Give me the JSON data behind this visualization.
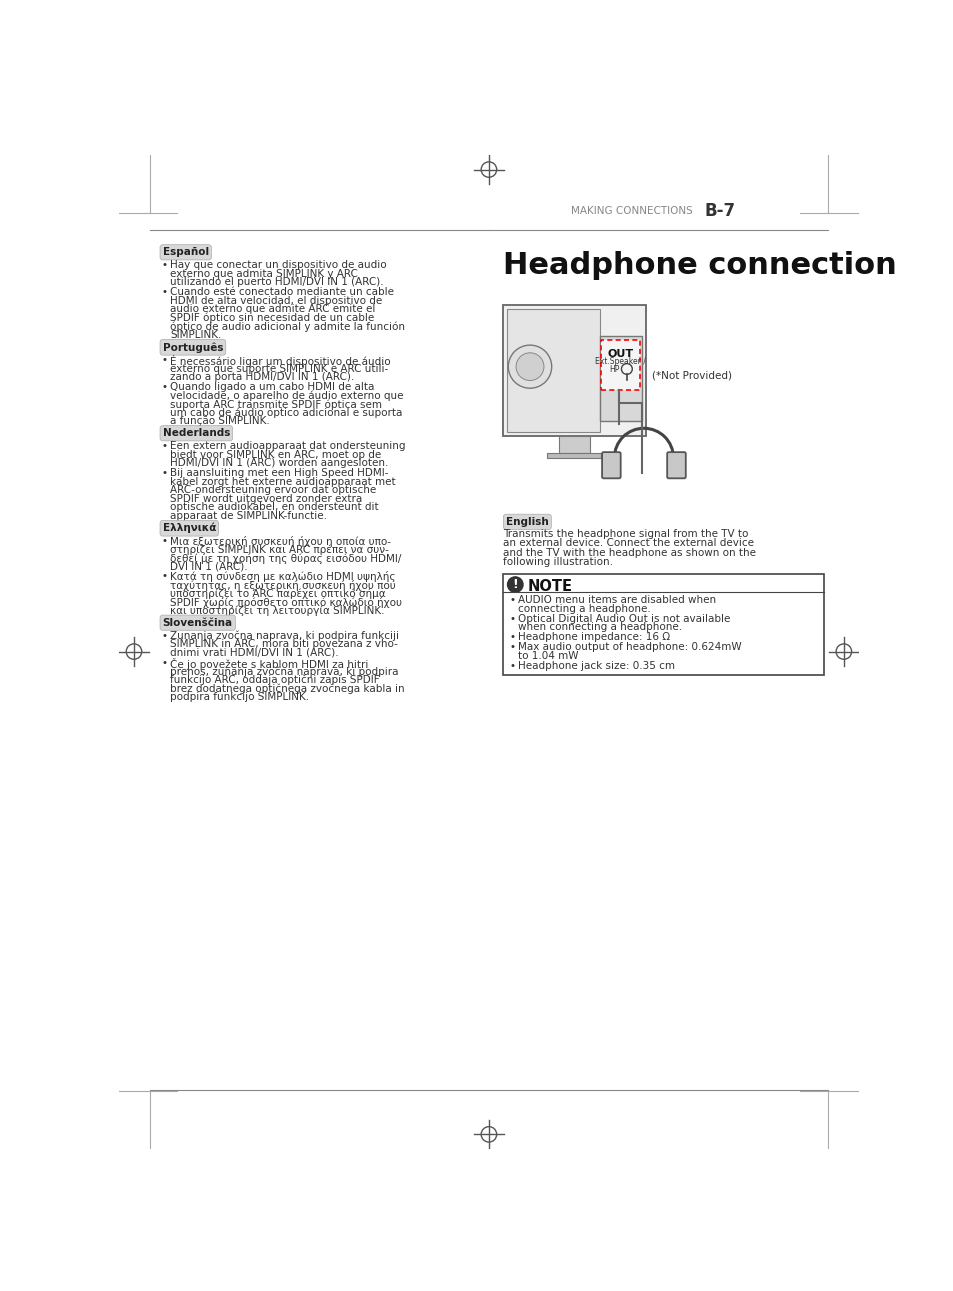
{
  "page_header_left": "MAKING CONNECTIONS",
  "page_header_right": "B-7",
  "title": "Headphone connection",
  "not_provided": "(*Not Provided)",
  "english_label": "English",
  "english_text_lines": [
    "Transmits the headphone signal from the TV to",
    "an external device. Connect the external device",
    "and the TV with the headphone as shown on the",
    "following illustration."
  ],
  "note_title": "NOTE",
  "note_bullet_groups": [
    [
      "AUDIO menu items are disabled when",
      "connecting a headphone."
    ],
    [
      "Optical Digital Audio Out is not available",
      "when connecting a headphone."
    ],
    [
      "Headphone impedance: 16 Ω"
    ],
    [
      "Max audio output of headphone: 0.624mW",
      "to 1.04 mW"
    ],
    [
      "Headphone jack size: 0.35 cm"
    ]
  ],
  "espanol_label": "Español",
  "espanol_bullet1": [
    "Hay que conectar un dispositivo de audio",
    "externo que admita SIMPLINK y ARC",
    "utilizando el puerto HDMI/DVI IN 1 (ARC)."
  ],
  "espanol_bullet2": [
    "Cuando esté conectado mediante un cable",
    "HDMI de alta velocidad, el dispositivo de",
    "audio externo que admite ARC emite el",
    "SPDIF óptico sin necesidad de un cable",
    "óptico de audio adicional y admite la función",
    "SIMPLINK."
  ],
  "portugues_label": "Português",
  "portugues_bullet1": [
    "É necessário ligar um dispositivo de áudio",
    "externo que suporte SIMPLINK e ARC utili-",
    "zando a porta HDMI/DVI IN 1 (ARC)."
  ],
  "portugues_bullet2": [
    "Quando ligado a um cabo HDMI de alta",
    "velocidade, o aparelho de áudio externo que",
    "suporta ARC transmite SPDIF óptica sem",
    "um cabo de áudio óptico adicional e suporta",
    "a função SIMPLINK."
  ],
  "nederlands_label": "Nederlands",
  "nederlands_bullet1": [
    "Een extern audioapparaat dat ondersteuning",
    "biedt voor SIMPLINK en ARC, moet op de",
    "HDMI/DVI IN 1 (ARC) worden aangesloten."
  ],
  "nederlands_bullet2": [
    "Bij aansluiting met een High Speed HDMI-",
    "kabel zorgt het externe audioapparaat met",
    "ARC-ondersteuning ervoor dat optische",
    "SPDIF wordt uitgevoerd zonder extra",
    "optische audiokabel, en ondersteunt dit",
    "apparaat de SIMPLINK-functie."
  ],
  "ellhnika_label": "Ελληνικά",
  "ellhnika_bullet1": [
    "Μια εξωτερική συσκευή ήχου η οποία υπο-",
    "στηρίζει SIMPLINK και ARC πρέπει να συν-",
    "δεθεί με τη χρήση της θύρας εισόδου HDMI/",
    "DVI IN 1 (ARC)."
  ],
  "ellhnika_bullet2": [
    "Κατά τη σύνδεση με καλώδιο HDMI υψηλής",
    "ταχύτητας, η εξωτερική συσκευή ήχου που",
    "υποστηρίζει το ARC παρέχει οπτικό σήμα",
    "SPDIF χωρίς πρόσθετο οπτικό καλώδιο ήχου",
    "και υποστηρίζει τη λειτουργία SIMPLINK."
  ],
  "slovens_label": "Slovenščina",
  "slovens_bullet1": [
    "Zunanja zvočna naprava, ki podpira funkciji",
    "SIMPLINK in ARC, mora biti povezana z vho-",
    "dnimi vrati HDMI/DVI IN 1 (ARC)."
  ],
  "slovens_bullet2": [
    "Če jo povežete s kablom HDMI za hitri",
    "prenos, zunanja zvočna naprava, ki podpira",
    "funkcijo ARC, oddaja optični zapis SPDIF",
    "brez dodatnega optičnega zvočnega kabla in",
    "podpira funkcijo SIMPLINK."
  ],
  "bg_color": "#ffffff",
  "text_color": "#333333",
  "label_bg": "#d8d8d8",
  "header_color": "#888888",
  "out_label": "OUT",
  "out_sublabel1": "Ext.Speaker /",
  "out_sublabel2": "HP"
}
